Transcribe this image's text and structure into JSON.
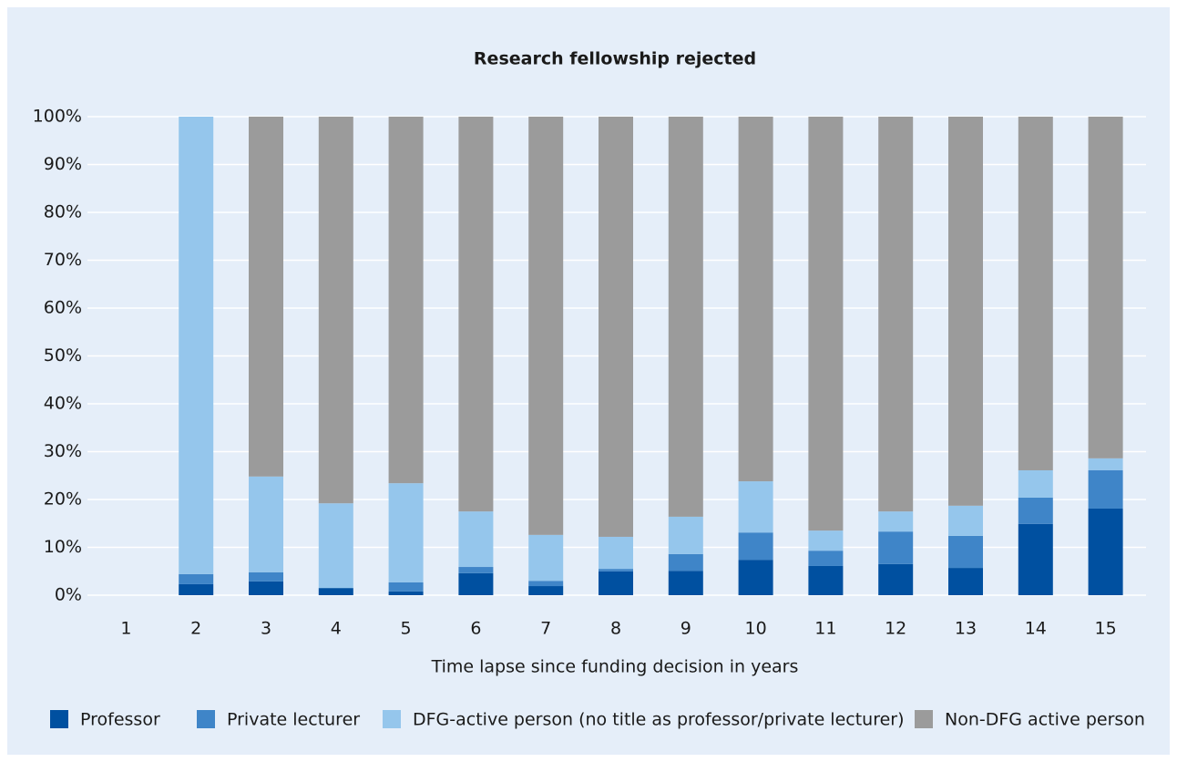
{
  "chart_data": {
    "type": "stacked_bar",
    "title": "Research fellowship rejected",
    "x_label": "Time lapse since funding decision in years",
    "categories": [
      "1",
      "2",
      "3",
      "4",
      "5",
      "6",
      "7",
      "8",
      "9",
      "10",
      "11",
      "12",
      "13",
      "14",
      "15"
    ],
    "series": [
      {
        "name": "Professor",
        "color": "#0050a0",
        "values": [
          0,
          2.3,
          2.9,
          1.5,
          0.8,
          4.6,
          1.9,
          5.0,
          5.1,
          7.4,
          6.1,
          6.5,
          5.7,
          14.9,
          18.1
        ]
      },
      {
        "name": "Private lecturer",
        "color": "#3f85c8",
        "values": [
          0,
          2.1,
          1.9,
          0,
          1.9,
          1.3,
          1.1,
          0.5,
          3.5,
          5.7,
          3.2,
          6.8,
          6.7,
          5.5,
          8.0
        ]
      },
      {
        "name": "DFG-active person (no title as professor/private lecturer)",
        "color": "#95c6ec",
        "values": [
          0,
          95.6,
          20.0,
          17.7,
          20.7,
          11.6,
          9.6,
          6.7,
          7.8,
          10.7,
          4.2,
          4.2,
          6.3,
          5.7,
          2.5
        ]
      },
      {
        "name": "Non-DFG active person",
        "color": "#9b9b9b",
        "values": [
          0,
          0,
          75.2,
          80.8,
          76.6,
          82.5,
          87.4,
          87.8,
          83.6,
          76.2,
          86.5,
          82.5,
          81.3,
          73.9,
          71.4
        ]
      }
    ],
    "ylim": [
      0,
      100
    ],
    "yticks": [
      {
        "value": 0,
        "label": "0%"
      },
      {
        "value": 10,
        "label": "10%"
      },
      {
        "value": 20,
        "label": "20%"
      },
      {
        "value": 30,
        "label": "30%"
      },
      {
        "value": 40,
        "label": "40%"
      },
      {
        "value": 50,
        "label": "50%"
      },
      {
        "value": 60,
        "label": "60%"
      },
      {
        "value": 70,
        "label": "70%"
      },
      {
        "value": 80,
        "label": "80%"
      },
      {
        "value": 90,
        "label": "90%"
      },
      {
        "value": 100,
        "label": "100%"
      }
    ],
    "grid": true,
    "legend": "bottom"
  }
}
